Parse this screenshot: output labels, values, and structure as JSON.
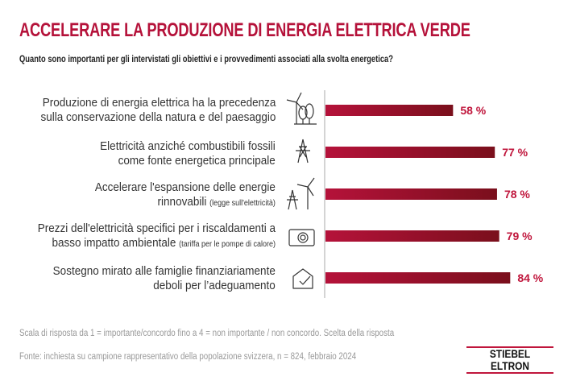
{
  "title": "ACCELERARE LA PRODUZIONE DI ENERGIA ELETTRICA VERDE",
  "subtitle": "Quanto sono importanti per gli intervistati gli obiettivi e i provvedimenti associati alla svolta energetica?",
  "chart_data": {
    "type": "bar",
    "orientation": "horizontal",
    "categories": [
      {
        "line1": "Produzione di energia elettrica ha la precedenza",
        "line2": "sulla conservazione della natura e del paesaggio",
        "note": "",
        "icon": "wind-turbine-trees-icon"
      },
      {
        "line1": "Elettricità anziché combustibili fossili",
        "line2": "come fonte energetica principale",
        "note": "",
        "icon": "power-pylon-icon"
      },
      {
        "line1": "Accelerare l'espansione delle energie",
        "line2": "rinnovabili",
        "note": "(legge sull'elettricità)",
        "icon": "pylon-wind-turbine-icon"
      },
      {
        "line1": "Prezzi dell'elettricità specifici per i riscaldamenti a",
        "line2": "basso impatto ambientale",
        "note": "(tariffa per le pompe di calore)",
        "icon": "heat-pump-icon"
      },
      {
        "line1": "Sostegno mirato alle famiglie finanziariamente",
        "line2": "deboli per l’adeguamento",
        "note": "",
        "icon": "house-check-icon"
      }
    ],
    "values": [
      58,
      77,
      78,
      79,
      84
    ],
    "value_labels": [
      "58 %",
      "77 %",
      "78 %",
      "79 %",
      "84 %"
    ],
    "unit": "%",
    "xlim": [
      0,
      100
    ],
    "grid": false,
    "bar_color_start": "#b5123a",
    "bar_color_end": "#7a0f1c",
    "label_color": "#c0163c"
  },
  "footnote": "Scala di risposta da 1 = importante/concordo fino a 4 = non importante / non concordo. Scelta della risposta",
  "source": "Fonte: inchiesta su campione rappresentativo della popolazione svizzera, n = 824, febbraio 2024",
  "logo": "STIEBEL ELTRON"
}
